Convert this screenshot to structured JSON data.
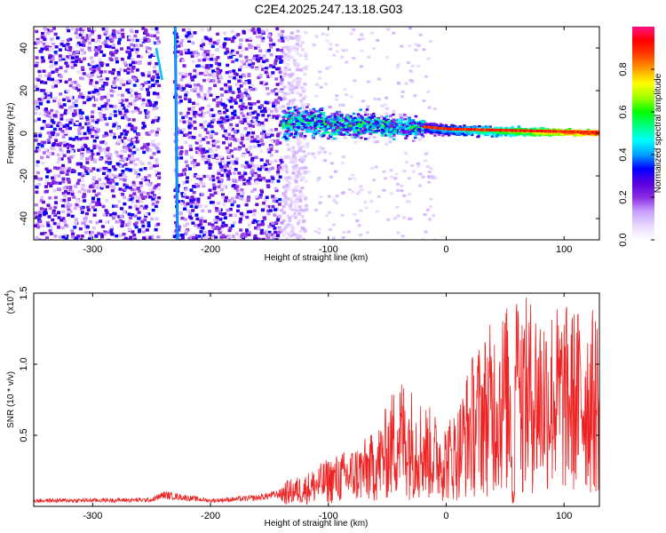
{
  "title": "C2E4.2025.247.13.18.G03",
  "chart_data": [
    {
      "type": "heatmap",
      "name": "spectrogram",
      "xlabel": "Height of straight line (km)",
      "ylabel": "Frequency (Hz)",
      "xlim": [
        -350,
        130
      ],
      "ylim": [
        -50,
        50
      ],
      "xticks": [
        -300,
        -200,
        -100,
        0,
        100
      ],
      "yticks": [
        40,
        20,
        0,
        -20,
        -40
      ],
      "colorbar": {
        "label": "Normalized spectral amplitude",
        "range": [
          0,
          1
        ],
        "ticks": [
          0.0,
          0.2,
          0.4,
          0.6,
          0.8
        ],
        "colors": [
          "#ffffff",
          "#e8d8ff",
          "#c9a0ff",
          "#8a2be2",
          "#5a00e0",
          "#0000ff",
          "#00a0ff",
          "#00ffff",
          "#00ff80",
          "#00ff00",
          "#a0ff00",
          "#ffff00",
          "#ffa000",
          "#ff4000",
          "#ff0000",
          "#ff1080"
        ]
      },
      "noise_region": {
        "x": [
          -350,
          -140
        ],
        "level": 0.15
      },
      "streak": {
        "x_at_y50": -230,
        "x_at_yminus50": -228,
        "second_x_at_y40": -246,
        "second_x_at_y25": -241
      },
      "signal_ridge": [
        {
          "x": -140,
          "y": 6
        },
        {
          "x": -100,
          "y": 5
        },
        {
          "x": -60,
          "y": 4
        },
        {
          "x": -20,
          "y": 3
        },
        {
          "x": 0,
          "y": 2
        },
        {
          "x": 40,
          "y": 1.5
        },
        {
          "x": 80,
          "y": 1
        },
        {
          "x": 130,
          "y": 0.5
        }
      ]
    },
    {
      "type": "line",
      "name": "snr",
      "xlabel": "Height of straight line (km)",
      "ylabel": "SNR (10 * v/v)",
      "y_multiplier": "(x10",
      "y_multiplier_exp": "4",
      "xlim": [
        -350,
        130
      ],
      "ylim": [
        0,
        15000
      ],
      "xticks": [
        -300,
        -200,
        -100,
        0,
        100
      ],
      "yticks": [
        0.5,
        1.0,
        1.5
      ],
      "line_color": "#ee2222",
      "envelope": [
        {
          "x": -350,
          "y": 400
        },
        {
          "x": -250,
          "y": 450
        },
        {
          "x": -240,
          "y": 800
        },
        {
          "x": -200,
          "y": 400
        },
        {
          "x": -160,
          "y": 600
        },
        {
          "x": -140,
          "y": 900
        },
        {
          "x": -120,
          "y": 1200
        },
        {
          "x": -100,
          "y": 1800
        },
        {
          "x": -80,
          "y": 2200
        },
        {
          "x": -60,
          "y": 2800
        },
        {
          "x": -50,
          "y": 3800
        },
        {
          "x": -40,
          "y": 5000
        },
        {
          "x": -30,
          "y": 4500
        },
        {
          "x": -20,
          "y": 4000
        },
        {
          "x": -10,
          "y": 3500
        },
        {
          "x": 0,
          "y": 3200
        },
        {
          "x": 10,
          "y": 3800
        },
        {
          "x": 20,
          "y": 5500
        },
        {
          "x": 30,
          "y": 6300
        },
        {
          "x": 40,
          "y": 7000
        },
        {
          "x": 50,
          "y": 7500
        },
        {
          "x": 60,
          "y": 7600
        },
        {
          "x": 70,
          "y": 7800
        },
        {
          "x": 80,
          "y": 7700
        },
        {
          "x": 90,
          "y": 7600
        },
        {
          "x": 100,
          "y": 7500
        },
        {
          "x": 110,
          "y": 7400
        },
        {
          "x": 120,
          "y": 7500
        },
        {
          "x": 130,
          "y": 7200
        }
      ],
      "peak": {
        "x": 60,
        "y": 15000
      }
    }
  ]
}
